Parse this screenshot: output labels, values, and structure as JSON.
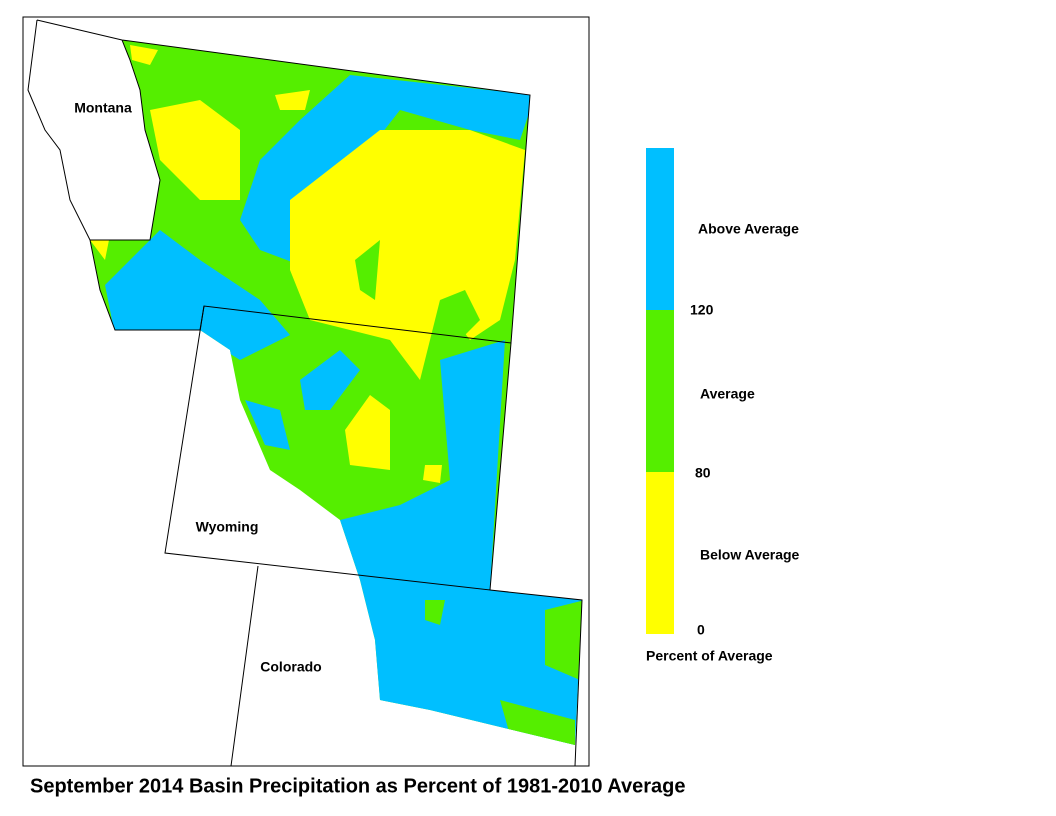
{
  "title": "September 2014 Basin Precipitation as Percent of 1981-2010 Average",
  "map": {
    "state_labels": [
      "Montana",
      "Wyoming",
      "Colorado"
    ]
  },
  "legend": {
    "title": "Percent of Average",
    "classes": [
      {
        "label": "Above Average",
        "color": "#00bfff"
      },
      {
        "label": "Average",
        "color": "#55ee00"
      },
      {
        "label": "Below Average",
        "color": "#ffff00"
      }
    ],
    "breaks": [
      120,
      80,
      0
    ]
  }
}
